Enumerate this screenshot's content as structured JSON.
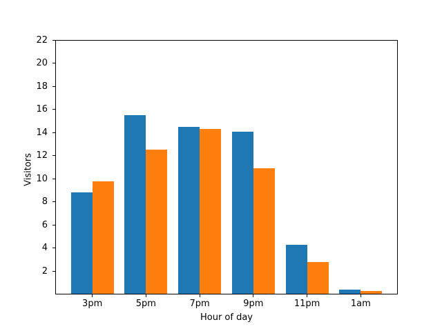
{
  "figure": {
    "background": "#ffffff"
  },
  "chart_data": {
    "type": "bar",
    "title": "",
    "xlabel": "Hour of day",
    "ylabel": "Visitors",
    "categories": [
      "3pm",
      "5pm",
      "7pm",
      "9pm",
      "11pm",
      "1am"
    ],
    "series": [
      {
        "name": "blue-series",
        "color": "#1f77b4",
        "values": [
          8.8,
          15.5,
          14.5,
          14.1,
          4.3,
          0.4
        ]
      },
      {
        "name": "orange-series",
        "color": "#ff7f0e",
        "values": [
          9.8,
          12.5,
          14.3,
          10.9,
          2.8,
          0.3
        ]
      }
    ],
    "ylim": [
      0,
      22
    ],
    "yticks": [
      2,
      4,
      6,
      8,
      10,
      12,
      14,
      16,
      18,
      20,
      22
    ],
    "xlim": [
      -0.69,
      5.69
    ],
    "bar_width": 0.4,
    "grid": false,
    "legend_position": "none",
    "spine_color": "#000000",
    "tick_color": "#000000",
    "text_color": "#000000"
  }
}
